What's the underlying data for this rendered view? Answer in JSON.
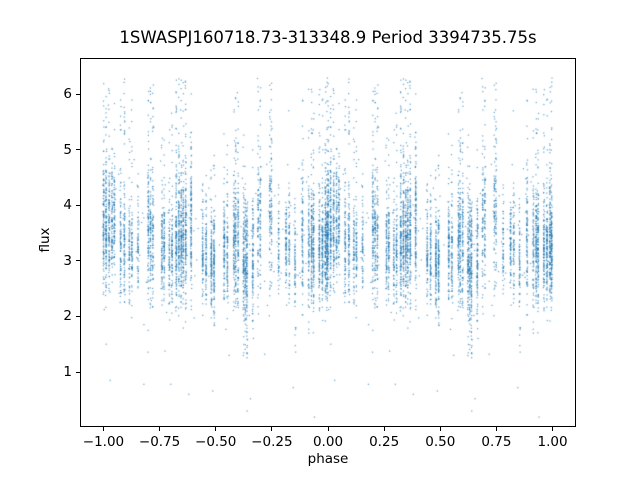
{
  "chart_data": {
    "type": "scatter",
    "title": "1SWASPJ160718.73-313348.9 Period 3394735.75s",
    "xlabel": "phase",
    "ylabel": "flux",
    "xlim": [
      -1.1,
      1.1
    ],
    "ylim": [
      0.03,
      6.63
    ],
    "grid": false,
    "legend": "none",
    "xticks": [
      {
        "v": -1.0,
        "label": "−1.00"
      },
      {
        "v": -0.75,
        "label": "−0.75"
      },
      {
        "v": -0.5,
        "label": "−0.50"
      },
      {
        "v": -0.25,
        "label": "−0.25"
      },
      {
        "v": 0.0,
        "label": "0.00"
      },
      {
        "v": 0.25,
        "label": "0.25"
      },
      {
        "v": 0.5,
        "label": "0.50"
      },
      {
        "v": 0.75,
        "label": "0.75"
      },
      {
        "v": 1.0,
        "label": "1.00"
      }
    ],
    "yticks": [
      {
        "v": 1,
        "label": "1"
      },
      {
        "v": 2,
        "label": "2"
      },
      {
        "v": 3,
        "label": "3"
      },
      {
        "v": 4,
        "label": "4"
      },
      {
        "v": 5,
        "label": "5"
      },
      {
        "v": 6,
        "label": "6"
      }
    ],
    "marker": {
      "color": "#1f77b4",
      "alpha": 0.7,
      "size": 1.2
    },
    "spine_color": "#000000",
    "background_color": "#ffffff",
    "fold_note": "data plotted at phase and phase-1 (duplicated across both cycles)",
    "flux_core_band": [
      2.8,
      3.9
    ],
    "flux_range_observed": [
      0.2,
      6.33
    ],
    "streaks": [
      {
        "p": 0.013,
        "cols": 3,
        "w": 0.022,
        "n": 380,
        "mu": 3.6,
        "sd": 0.5,
        "top": 6.2,
        "topF": 0.14,
        "bot": 2.1,
        "botF": 0.04
      },
      {
        "p": 0.045,
        "cols": 2,
        "w": 0.01,
        "n": 170,
        "mu": 3.7,
        "sd": 0.45,
        "top": 6.05,
        "topF": 0.12,
        "bot": 2.3,
        "botF": 0.03
      },
      {
        "p": 0.085,
        "cols": 2,
        "w": 0.014,
        "n": 200,
        "mu": 3.3,
        "sd": 0.5,
        "top": 6.3,
        "topF": 0.22,
        "bot": 2.2,
        "botF": 0.04
      },
      {
        "p": 0.12,
        "cols": 2,
        "w": 0.01,
        "n": 150,
        "mu": 3.15,
        "sd": 0.45,
        "top": 6.2,
        "topF": 0.18,
        "bot": 2.3,
        "botF": 0.03
      },
      {
        "p": 0.155,
        "cols": 1,
        "w": 0.004,
        "n": 60,
        "mu": 3.3,
        "sd": 0.4,
        "top": 4.8,
        "topF": 0.06,
        "bot": 2.5,
        "botF": 0.02
      },
      {
        "p": 0.21,
        "cols": 3,
        "w": 0.02,
        "n": 280,
        "mu": 3.45,
        "sd": 0.55,
        "top": 6.2,
        "topF": 0.18,
        "bot": 2.2,
        "botF": 0.03
      },
      {
        "p": 0.265,
        "cols": 2,
        "w": 0.012,
        "n": 170,
        "mu": 3.2,
        "sd": 0.45,
        "top": 5.3,
        "topF": 0.1,
        "bot": 2.1,
        "botF": 0.04
      },
      {
        "p": 0.3,
        "cols": 2,
        "w": 0.01,
        "n": 160,
        "mu": 3.1,
        "sd": 0.45,
        "top": 6.1,
        "topF": 0.12,
        "bot": 2.2,
        "botF": 0.04
      },
      {
        "p": 0.345,
        "cols": 5,
        "w": 0.042,
        "n": 640,
        "mu": 3.4,
        "sd": 0.55,
        "top": 6.3,
        "topF": 0.2,
        "bot": 2.1,
        "botF": 0.05
      },
      {
        "p": 0.39,
        "cols": 1,
        "w": 0.005,
        "n": 140,
        "mu": 3.6,
        "sd": 0.6,
        "top": 6.25,
        "topF": 0.25,
        "bot": 2.3,
        "botF": 0.02
      },
      {
        "p": 0.45,
        "cols": 2,
        "w": 0.014,
        "n": 170,
        "mu": 3.1,
        "sd": 0.4,
        "top": 4.7,
        "topF": 0.07,
        "bot": 1.8,
        "botF": 0.09
      },
      {
        "p": 0.487,
        "cols": 2,
        "w": 0.014,
        "n": 240,
        "mu": 3.05,
        "sd": 0.45,
        "top": 5.0,
        "topF": 0.08,
        "bot": 1.55,
        "botF": 0.11
      },
      {
        "p": 0.545,
        "cols": 2,
        "w": 0.014,
        "n": 190,
        "mu": 3.2,
        "sd": 0.5,
        "top": 5.5,
        "topF": 0.12,
        "bot": 2.0,
        "botF": 0.05
      },
      {
        "p": 0.59,
        "cols": 3,
        "w": 0.018,
        "n": 300,
        "mu": 3.35,
        "sd": 0.55,
        "top": 6.05,
        "topF": 0.16,
        "bot": 2.1,
        "botF": 0.05
      },
      {
        "p": 0.632,
        "cols": 3,
        "w": 0.016,
        "n": 330,
        "mu": 3.0,
        "sd": 0.55,
        "top": 5.3,
        "topF": 0.08,
        "bot": 1.1,
        "botF": 0.16
      },
      {
        "p": 0.665,
        "cols": 1,
        "w": 0.005,
        "n": 110,
        "mu": 3.1,
        "sd": 0.5,
        "top": 5.0,
        "topF": 0.08,
        "bot": 1.6,
        "botF": 0.08
      },
      {
        "p": 0.695,
        "cols": 2,
        "w": 0.01,
        "n": 150,
        "mu": 3.55,
        "sd": 0.65,
        "top": 6.3,
        "topF": 0.25,
        "bot": 2.4,
        "botF": 0.02
      },
      {
        "p": 0.745,
        "cols": 2,
        "w": 0.01,
        "n": 130,
        "mu": 3.75,
        "sd": 0.75,
        "top": 6.25,
        "topF": 0.28,
        "bot": 2.5,
        "botF": 0.02
      },
      {
        "p": 0.78,
        "cols": 1,
        "w": 0.004,
        "n": 60,
        "mu": 3.3,
        "sd": 0.4,
        "top": 4.4,
        "topF": 0.05,
        "bot": 2.5,
        "botF": 0.02
      },
      {
        "p": 0.82,
        "cols": 2,
        "w": 0.012,
        "n": 150,
        "mu": 3.3,
        "sd": 0.42,
        "top": 4.5,
        "topF": 0.05,
        "bot": 2.2,
        "botF": 0.04
      },
      {
        "p": 0.852,
        "cols": 1,
        "w": 0.005,
        "n": 70,
        "mu": 2.95,
        "sd": 0.5,
        "top": 4.2,
        "topF": 0.05,
        "bot": 1.3,
        "botF": 0.16
      },
      {
        "p": 0.885,
        "cols": 1,
        "w": 0.006,
        "n": 100,
        "mu": 3.4,
        "sd": 0.6,
        "top": 5.9,
        "topF": 0.15,
        "bot": 2.2,
        "botF": 0.03
      },
      {
        "p": 0.925,
        "cols": 3,
        "w": 0.018,
        "n": 330,
        "mu": 3.3,
        "sd": 0.5,
        "top": 6.1,
        "topF": 0.15,
        "bot": 1.5,
        "botF": 0.07
      },
      {
        "p": 0.968,
        "cols": 2,
        "w": 0.012,
        "n": 250,
        "mu": 3.2,
        "sd": 0.48,
        "top": 6.2,
        "topF": 0.13,
        "bot": 2.0,
        "botF": 0.04
      },
      {
        "p": 0.993,
        "cols": 2,
        "w": 0.009,
        "n": 300,
        "mu": 3.25,
        "sd": 0.5,
        "top": 6.3,
        "topF": 0.16,
        "bot": 1.9,
        "botF": 0.05
      }
    ],
    "background": {
      "n": 140,
      "mu": 3.35,
      "sd": 0.85
    },
    "outliers": [
      {
        "p": 0.38,
        "f": 0.6
      },
      {
        "p": 0.487,
        "f": 0.66
      },
      {
        "p": 0.64,
        "f": 0.3
      },
      {
        "p": 0.655,
        "f": 0.52
      },
      {
        "p": 0.845,
        "f": 0.72
      },
      {
        "p": 0.94,
        "f": 0.19
      },
      {
        "p": 0.03,
        "f": 0.85
      },
      {
        "p": 0.56,
        "f": 1.3
      },
      {
        "p": 0.18,
        "f": 0.78
      },
      {
        "p": 0.3,
        "f": 0.78
      }
    ]
  }
}
